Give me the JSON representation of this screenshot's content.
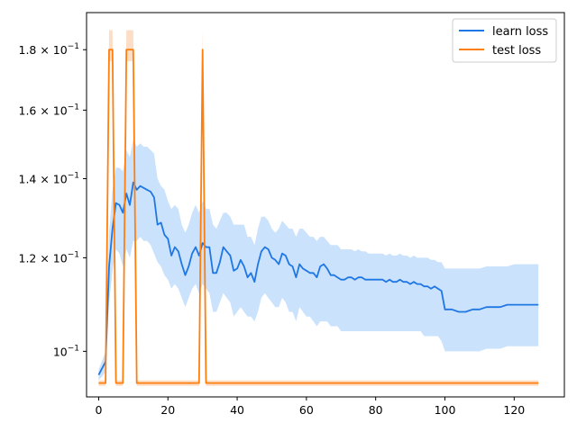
{
  "chart_data": {
    "type": "line",
    "title": "",
    "xlabel": "",
    "ylabel": "",
    "y_scale": "log",
    "xlim": [
      -3.5,
      134.5
    ],
    "ylim": [
      0.0915,
      0.1935
    ],
    "grid": false,
    "legend_position": "top-right",
    "x_ticks": [
      0,
      20,
      40,
      60,
      80,
      100,
      120
    ],
    "x_tick_labels": [
      "0",
      "20",
      "40",
      "60",
      "80",
      "100",
      "120"
    ],
    "y_ticks": [
      {
        "value": 0.1,
        "mantissa": "",
        "base": "10",
        "exponent": "−1"
      },
      {
        "value": 0.12,
        "mantissa": "1.2 × ",
        "base": "10",
        "exponent": "−1"
      },
      {
        "value": 0.14,
        "mantissa": "1.4 × ",
        "base": "10",
        "exponent": "−1"
      },
      {
        "value": 0.16,
        "mantissa": "1.6 × ",
        "base": "10",
        "exponent": "−1"
      },
      {
        "value": 0.18,
        "mantissa": "1.8 × ",
        "base": "10",
        "exponent": "−1"
      }
    ],
    "series": [
      {
        "name": "learn loss",
        "color": "#1f77e4",
        "band_color": "#c4dffc",
        "x": [
          0,
          2,
          3,
          4,
          5,
          6,
          7,
          8,
          9,
          10,
          11,
          12,
          13,
          14,
          15,
          16,
          17,
          18,
          19,
          20,
          21,
          22,
          23,
          24,
          25,
          26,
          27,
          28,
          29,
          30,
          31,
          32,
          33,
          34,
          35,
          36,
          37,
          38,
          39,
          40,
          41,
          42,
          43,
          44,
          45,
          46,
          47,
          48,
          49,
          50,
          51,
          52,
          53,
          54,
          55,
          56,
          57,
          58,
          59,
          60,
          61,
          62,
          63,
          64,
          65,
          66,
          67,
          68,
          69,
          70,
          71,
          72,
          73,
          74,
          75,
          76,
          77,
          78,
          79,
          80,
          81,
          82,
          83,
          84,
          85,
          86,
          87,
          88,
          89,
          90,
          91,
          92,
          93,
          94,
          95,
          96,
          97,
          98,
          99,
          100,
          102,
          104,
          106,
          108,
          110,
          112,
          114,
          116,
          118,
          120,
          122,
          124,
          127
        ],
        "y": [
          0.0955,
          0.098,
          0.118,
          0.127,
          0.1335,
          0.133,
          0.131,
          0.136,
          0.133,
          0.139,
          0.137,
          0.138,
          0.1375,
          0.137,
          0.1365,
          0.135,
          0.128,
          0.1285,
          0.1255,
          0.1245,
          0.1205,
          0.1225,
          0.1215,
          0.1185,
          0.116,
          0.118,
          0.121,
          0.1225,
          0.1205,
          0.1235,
          0.1225,
          0.1225,
          0.1165,
          0.1165,
          0.119,
          0.1225,
          0.1215,
          0.1205,
          0.117,
          0.1175,
          0.1195,
          0.118,
          0.1155,
          0.1165,
          0.1145,
          0.1185,
          0.1215,
          0.1225,
          0.122,
          0.12,
          0.1195,
          0.1185,
          0.121,
          0.1205,
          0.1185,
          0.118,
          0.1155,
          0.1185,
          0.1175,
          0.117,
          0.1165,
          0.1165,
          0.1155,
          0.118,
          0.1185,
          0.1175,
          0.116,
          0.116,
          0.1155,
          0.115,
          0.115,
          0.1155,
          0.1155,
          0.115,
          0.1155,
          0.1155,
          0.115,
          0.115,
          0.115,
          0.115,
          0.115,
          0.115,
          0.1145,
          0.115,
          0.1145,
          0.1145,
          0.115,
          0.1145,
          0.1145,
          0.114,
          0.1145,
          0.114,
          0.114,
          0.1135,
          0.1135,
          0.113,
          0.1135,
          0.113,
          0.1125,
          0.1085,
          0.1085,
          0.108,
          0.108,
          0.1085,
          0.1085,
          0.109,
          0.109,
          0.109,
          0.1095,
          0.1095,
          0.1095,
          0.1095,
          0.1095
        ],
        "lower": [
          0.0945,
          0.096,
          0.11,
          0.117,
          0.122,
          0.121,
          0.118,
          0.122,
          0.12,
          0.124,
          0.124,
          0.125,
          0.124,
          0.124,
          0.123,
          0.121,
          0.119,
          0.118,
          0.116,
          0.115,
          0.113,
          0.114,
          0.113,
          0.111,
          0.109,
          0.111,
          0.113,
          0.114,
          0.112,
          0.114,
          0.113,
          0.112,
          0.108,
          0.108,
          0.11,
          0.112,
          0.111,
          0.11,
          0.107,
          0.108,
          0.109,
          0.108,
          0.107,
          0.107,
          0.106,
          0.108,
          0.111,
          0.112,
          0.111,
          0.11,
          0.109,
          0.109,
          0.111,
          0.11,
          0.108,
          0.108,
          0.106,
          0.109,
          0.108,
          0.107,
          0.107,
          0.106,
          0.105,
          0.106,
          0.106,
          0.106,
          0.105,
          0.105,
          0.105,
          0.104,
          0.104,
          0.104,
          0.104,
          0.104,
          0.104,
          0.104,
          0.104,
          0.104,
          0.104,
          0.104,
          0.104,
          0.104,
          0.104,
          0.104,
          0.104,
          0.104,
          0.104,
          0.104,
          0.104,
          0.104,
          0.104,
          0.104,
          0.104,
          0.103,
          0.103,
          0.103,
          0.103,
          0.103,
          0.102,
          0.1,
          0.1,
          0.1,
          0.1,
          0.1,
          0.1,
          0.1005,
          0.1005,
          0.1005,
          0.101,
          0.101,
          0.101,
          0.101,
          0.101
        ],
        "upper": [
          0.0965,
          0.1,
          0.126,
          0.137,
          0.143,
          0.143,
          0.142,
          0.148,
          0.146,
          0.151,
          0.149,
          0.15,
          0.149,
          0.149,
          0.148,
          0.147,
          0.14,
          0.138,
          0.137,
          0.134,
          0.132,
          0.133,
          0.132,
          0.128,
          0.126,
          0.128,
          0.131,
          0.133,
          0.131,
          0.134,
          0.132,
          0.132,
          0.128,
          0.127,
          0.129,
          0.131,
          0.131,
          0.13,
          0.128,
          0.128,
          0.128,
          0.128,
          0.125,
          0.125,
          0.123,
          0.127,
          0.13,
          0.13,
          0.129,
          0.127,
          0.126,
          0.127,
          0.129,
          0.128,
          0.127,
          0.127,
          0.125,
          0.127,
          0.127,
          0.126,
          0.125,
          0.125,
          0.124,
          0.125,
          0.125,
          0.124,
          0.123,
          0.123,
          0.123,
          0.122,
          0.122,
          0.122,
          0.122,
          0.1215,
          0.122,
          0.1215,
          0.1215,
          0.121,
          0.121,
          0.121,
          0.121,
          0.121,
          0.1205,
          0.121,
          0.1205,
          0.1205,
          0.121,
          0.1205,
          0.1205,
          0.12,
          0.1205,
          0.12,
          0.12,
          0.12,
          0.12,
          0.1195,
          0.1195,
          0.119,
          0.119,
          0.1175,
          0.1175,
          0.1175,
          0.1175,
          0.1175,
          0.1175,
          0.118,
          0.118,
          0.118,
          0.118,
          0.1185,
          0.1185,
          0.1185,
          0.1185
        ]
      },
      {
        "name": "test loss",
        "color": "#ff7f0e",
        "band_color": "#fcd9bf",
        "x": [
          0,
          2,
          3,
          4,
          5,
          6,
          7,
          8,
          9,
          10,
          11,
          12,
          20,
          28,
          29,
          30,
          31,
          32,
          40,
          60,
          80,
          100,
          127
        ],
        "y": [
          0.094,
          0.094,
          0.18,
          0.18,
          0.094,
          0.094,
          0.094,
          0.18,
          0.18,
          0.18,
          0.094,
          0.094,
          0.094,
          0.094,
          0.094,
          0.18,
          0.094,
          0.094,
          0.094,
          0.094,
          0.094,
          0.094,
          0.094
        ],
        "lower": [
          0.0935,
          0.0935,
          0.176,
          0.176,
          0.0935,
          0.0935,
          0.0935,
          0.176,
          0.176,
          0.176,
          0.0935,
          0.0935,
          0.0935,
          0.0935,
          0.0935,
          0.176,
          0.0935,
          0.0935,
          0.0935,
          0.0935,
          0.0935,
          0.0935,
          0.0935
        ],
        "upper": [
          0.0945,
          0.0945,
          0.187,
          0.187,
          0.0945,
          0.0945,
          0.0945,
          0.187,
          0.187,
          0.187,
          0.0945,
          0.0945,
          0.0945,
          0.0945,
          0.0945,
          0.187,
          0.0945,
          0.0945,
          0.0945,
          0.0945,
          0.0945,
          0.0945,
          0.0945
        ]
      }
    ]
  }
}
